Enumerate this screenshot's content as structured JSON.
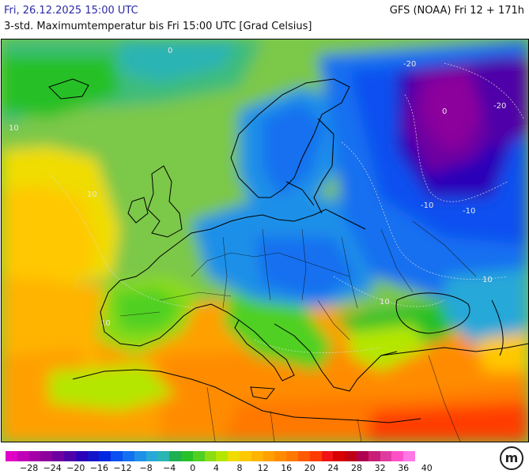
{
  "header": {
    "date": "Fri, 26.12.2025 15:00 UTC",
    "model": "GFS (NOAA) Fri 12 + 171h",
    "title": "3-std. Maximumtemperatur bis Fri 15:00 UTC [Grad Celsius]"
  },
  "map": {
    "region": "Europe",
    "isolines": [
      {
        "label": "-20",
        "temp": -20
      },
      {
        "label": "-20",
        "temp": -20
      },
      {
        "label": "-10",
        "temp": -10
      },
      {
        "label": "-10",
        "temp": -10
      },
      {
        "label": "0",
        "temp": 0
      },
      {
        "label": "0",
        "temp": 0
      },
      {
        "label": "10",
        "temp": 10
      },
      {
        "label": "10",
        "temp": 10
      },
      {
        "label": "10",
        "temp": 10
      },
      {
        "label": "10",
        "temp": 10
      },
      {
        "label": "10",
        "temp": 10
      }
    ]
  },
  "legend": {
    "colors": [
      "#e000c8",
      "#c000b8",
      "#a400a8",
      "#8c009c",
      "#6e00a0",
      "#5000a8",
      "#2a00b8",
      "#1414c8",
      "#0028e0",
      "#0a50f0",
      "#1470f0",
      "#1e90e8",
      "#28a8d8",
      "#2ab4b4",
      "#1eb050",
      "#28c028",
      "#50d020",
      "#8cdc14",
      "#b4e600",
      "#f0dc00",
      "#ffc800",
      "#ffb400",
      "#ffa000",
      "#ff8c00",
      "#ff7800",
      "#ff5a00",
      "#ff3c00",
      "#f01414",
      "#d80000",
      "#c00014",
      "#b00050",
      "#c81e78",
      "#e03ca0",
      "#ff50c8",
      "#ff78e6"
    ],
    "labels": [
      "−28",
      "−24",
      "−20",
      "−16",
      "−12",
      "−8",
      "−4",
      "0",
      "4",
      "8",
      "12",
      "16",
      "20",
      "24",
      "28",
      "32",
      "36",
      "40"
    ]
  },
  "logo": {
    "text": "m"
  }
}
